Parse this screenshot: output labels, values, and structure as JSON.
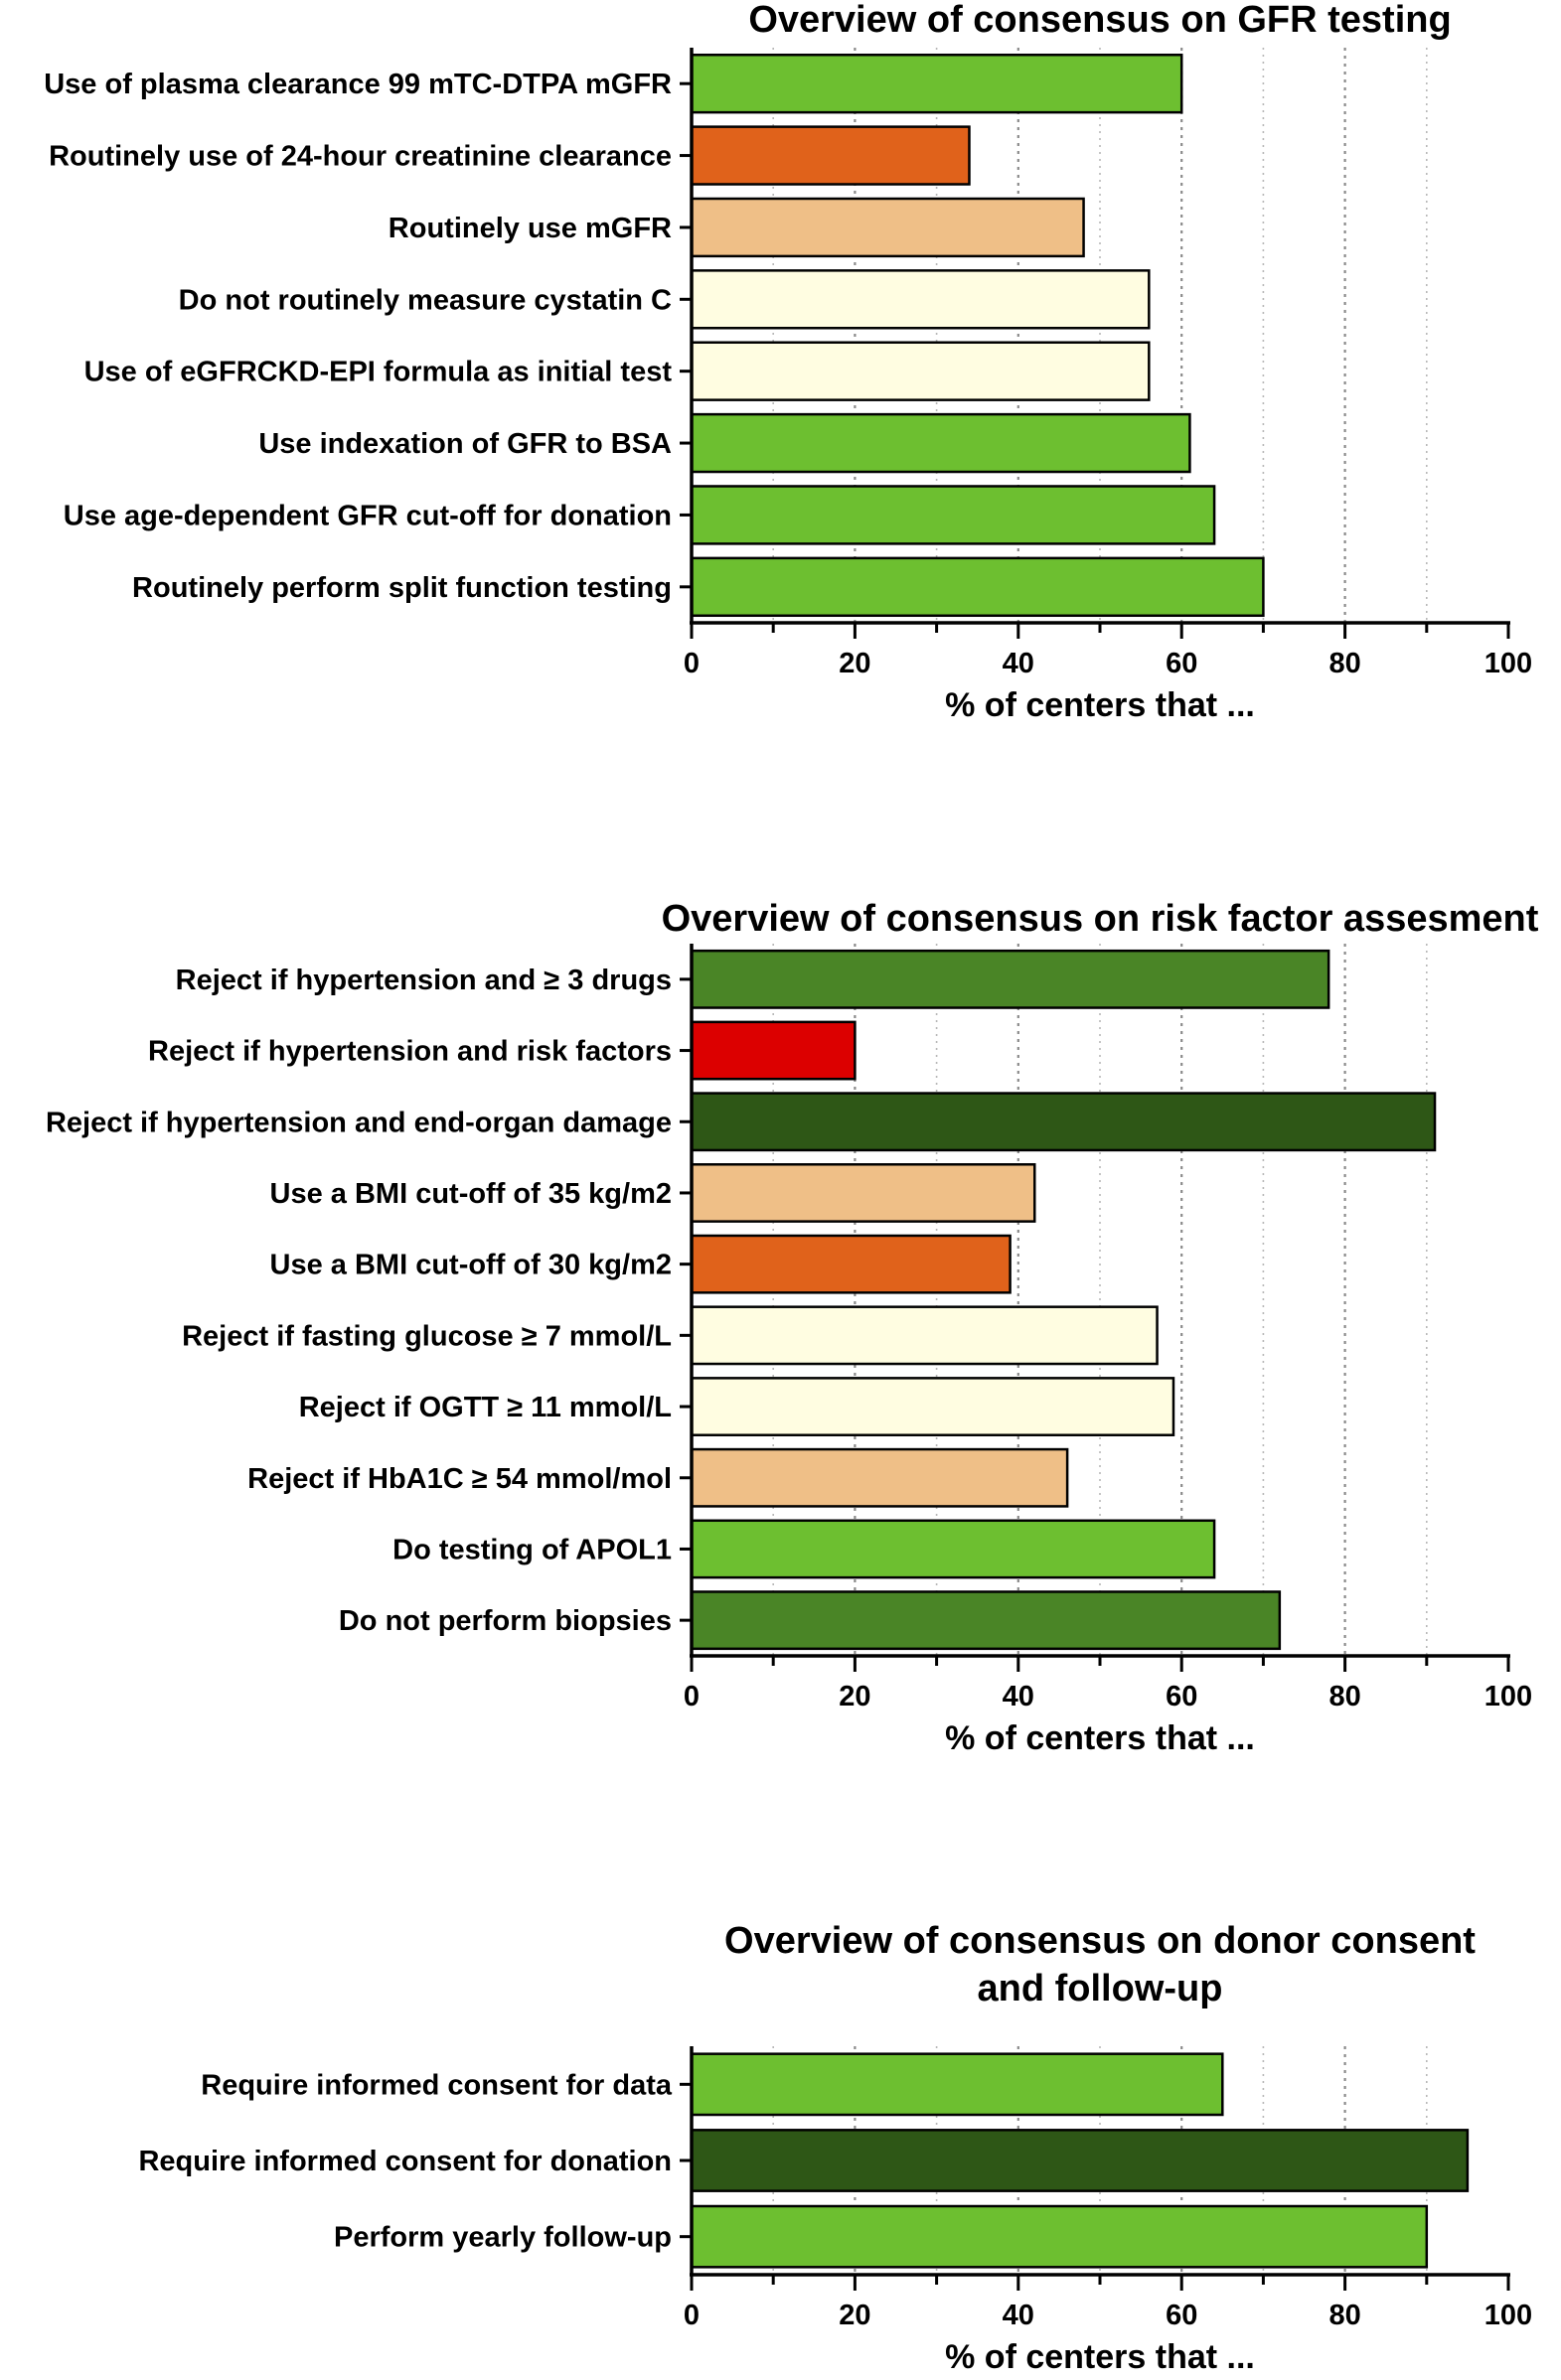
{
  "chart_data": [
    {
      "type": "bar",
      "orientation": "horizontal",
      "title": "Overview of consensus on GFR testing",
      "xlabel": "% of centers that ...",
      "ylabel": "",
      "xlim": [
        0,
        100
      ],
      "xticks": [
        0,
        20,
        40,
        60,
        80,
        100
      ],
      "grid": "vertical dotted lines every 10",
      "categories": [
        "Use of plasma clearance 99 mTC-DTPA mGFR",
        "Routinely use of 24-hour creatinine clearance",
        "Routinely use mGFR",
        "Do not routinely measure cystatin C",
        "Use of eGFRCKD-EPI formula as initial test",
        "Use indexation of GFR to BSA",
        "Use age-dependent GFR cut-off for donation",
        "Routinely perform split function testing"
      ],
      "values": [
        60,
        34,
        48,
        56,
        56,
        61,
        64,
        70
      ],
      "colors": [
        "#6dbf30",
        "#e0621b",
        "#efbf87",
        "#fffde1",
        "#fffde1",
        "#6dbf30",
        "#6dbf30",
        "#6dbf30"
      ]
    },
    {
      "type": "bar",
      "orientation": "horizontal",
      "title": "Overview of consensus on risk factor assesment",
      "xlabel": "% of centers that ...",
      "ylabel": "",
      "xlim": [
        0,
        100
      ],
      "xticks": [
        0,
        20,
        40,
        60,
        80,
        100
      ],
      "grid": "vertical dotted lines every 10",
      "categories": [
        "Reject if hypertension and ≥ 3 drugs",
        "Reject if hypertension and risk factors",
        "Reject if hypertension and end-organ damage",
        "Use a BMI cut-off of 35 kg/m2",
        "Use a BMI cut-off of 30 kg/m2",
        "Reject if fasting glucose ≥ 7 mmol/L",
        "Reject if OGTT ≥ 11 mmol/L",
        "Reject if HbA1C ≥ 54 mmol/mol",
        "Do testing of APOL1",
        "Do not perform biopsies"
      ],
      "values": [
        78,
        20,
        91,
        42,
        39,
        57,
        59,
        46,
        64,
        72
      ],
      "colors": [
        "#4a8526",
        "#dc0000",
        "#2e5716",
        "#efbf87",
        "#e0621b",
        "#fffde1",
        "#fffde1",
        "#efbf87",
        "#6dbf30",
        "#4a8526"
      ]
    },
    {
      "type": "bar",
      "orientation": "horizontal",
      "title": "Overview of consensus on donor consent and follow-up",
      "title_lines": [
        "Overview of consensus on donor consent",
        "and follow-up"
      ],
      "xlabel": "% of centers that ...",
      "ylabel": "",
      "xlim": [
        0,
        100
      ],
      "xticks": [
        0,
        20,
        40,
        60,
        80,
        100
      ],
      "grid": "vertical dotted lines every 10",
      "categories": [
        "Require informed consent for data",
        "Require informed consent for donation",
        "Perform yearly follow-up"
      ],
      "values": [
        65,
        95,
        90
      ],
      "colors": [
        "#6dbf30",
        "#2e5716",
        "#6dbf30"
      ]
    }
  ]
}
